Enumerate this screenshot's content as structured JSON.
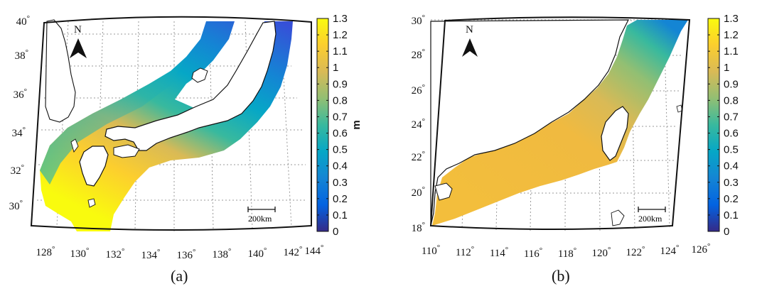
{
  "figure": {
    "panels": [
      {
        "caption": "(a)",
        "lon_labels": [
          "128",
          "130",
          "132",
          "134",
          "136",
          "138",
          "140",
          "142",
          "144"
        ],
        "lat_labels": [
          "30",
          "32",
          "34",
          "36",
          "38",
          "40"
        ],
        "north_label": "N",
        "scale_label": "200km",
        "field_range_m": [
          0.3,
          1.3
        ]
      },
      {
        "caption": "(b)",
        "lon_labels": [
          "110",
          "112",
          "114",
          "116",
          "118",
          "120",
          "122",
          "124",
          "126"
        ],
        "lat_labels": [
          "18",
          "20",
          "22",
          "24",
          "26",
          "28",
          "30"
        ],
        "north_label": "N",
        "scale_label": "200km",
        "field_range_m": [
          0.4,
          1.15
        ]
      }
    ],
    "colorbar": {
      "unit": "m",
      "ticks": [
        "1.3",
        "1.2",
        "1.1",
        "1",
        "0.9",
        "0.8",
        "0.7",
        "0.6",
        "0.5",
        "0.4",
        "0.3",
        "0.2",
        "0.1",
        "0"
      ],
      "min": 0,
      "max": 1.3,
      "colormap": "parula",
      "colors": [
        "#352A87",
        "#0363E1",
        "#1485D4",
        "#06A7C6",
        "#38B99E",
        "#92BF73",
        "#D9BA56",
        "#FCCE2E",
        "#F9FB0E"
      ]
    },
    "degree_symbol": "°"
  }
}
